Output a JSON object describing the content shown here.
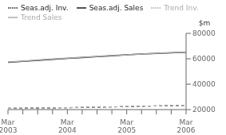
{
  "chart_data": {
    "type": "line",
    "ylabel": "$m",
    "categories": [
      "Mar\n2003",
      null,
      null,
      null,
      "Mar\n2004",
      null,
      null,
      null,
      "Mar\n2005",
      null,
      null,
      null,
      "Mar\n2006"
    ],
    "series": [
      {
        "name": "Seas.adj. Sales",
        "color": "#1a1a1a",
        "line_style": "solid",
        "values": [
          57200,
          58000,
          58800,
          59600,
          60300,
          61000,
          61700,
          62400,
          63100,
          63700,
          64200,
          64700,
          65100
        ]
      },
      {
        "name": "Trend Sales",
        "color": "#aaaaaa",
        "line_style": "solid",
        "values": [
          57500,
          58200,
          59000,
          59800,
          60500,
          61200,
          61900,
          62600,
          63200,
          63800,
          64300,
          64800,
          65300
        ]
      },
      {
        "name": "Seas.adj. Inv.",
        "color": "#1a1a1a",
        "line_style": "dashed",
        "values": [
          21000,
          21100,
          21200,
          21350,
          21500,
          21700,
          21900,
          22100,
          22350,
          22600,
          22850,
          23100,
          23300
        ]
      },
      {
        "name": "Trend Inv.",
        "color": "#aaaaaa",
        "line_style": "dashed",
        "values": [
          21050,
          21150,
          21250,
          21400,
          21550,
          21750,
          21950,
          22150,
          22400,
          22650,
          22900,
          23150,
          23350
        ]
      }
    ],
    "ylim": [
      20000,
      80000
    ],
    "yticks": [
      20000,
      40000,
      60000,
      80000
    ],
    "grid": false,
    "legend": "top"
  }
}
